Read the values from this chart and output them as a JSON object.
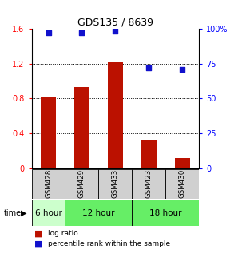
{
  "title": "GDS135 / 8639",
  "samples": [
    "GSM428",
    "GSM429",
    "GSM433",
    "GSM423",
    "GSM430"
  ],
  "log_ratios": [
    0.82,
    0.93,
    1.22,
    0.32,
    0.12
  ],
  "percentile_ranks": [
    97,
    97,
    98,
    72,
    71
  ],
  "bar_color": "#bb1100",
  "dot_color": "#1111cc",
  "ylim_left": [
    0,
    1.6
  ],
  "ylim_right": [
    0,
    100
  ],
  "yticks_left": [
    0,
    0.4,
    0.8,
    1.2,
    1.6
  ],
  "ytick_labels_left": [
    "0",
    "0.4",
    "0.8",
    "1.2",
    "1.6"
  ],
  "yticks_right": [
    0,
    25,
    50,
    75,
    100
  ],
  "ytick_labels_right": [
    "0",
    "25",
    "50",
    "75",
    "100%"
  ],
  "time_groups": [
    {
      "label": "6 hour",
      "start": 0,
      "end": 1,
      "color": "#ccffcc"
    },
    {
      "label": "12 hour",
      "start": 1,
      "end": 3,
      "color": "#66ee66"
    },
    {
      "label": "18 hour",
      "start": 3,
      "end": 5,
      "color": "#66ee66"
    }
  ],
  "legend_bar_label": "log ratio",
  "legend_dot_label": "percentile rank within the sample",
  "bg_color": "#ffffff",
  "sample_box_color": "#d0d0d0",
  "bar_width": 0.45
}
